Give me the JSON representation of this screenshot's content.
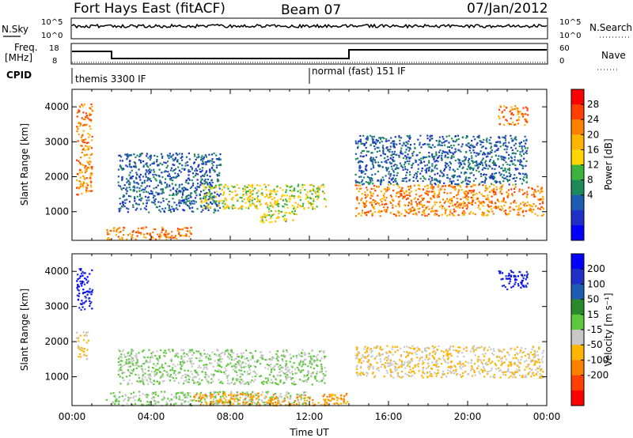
{
  "header": {
    "station": "Fort Hays East (fitACF)",
    "beam": "Beam 07",
    "date": "07/Jan/2012"
  },
  "status_panels": {
    "nsky_label": "N.Sky",
    "nsky_ticks": [
      "10^5",
      "10^0"
    ],
    "nsearch_label": "N.Search",
    "nsearch_ticks": [
      "10^5",
      "10^0"
    ],
    "freq_label": "Freq.",
    "freq_unit": "[MHz]",
    "freq_ticks": [
      "18",
      "8"
    ],
    "nave_label": "Nave",
    "nave_ticks": [
      "60",
      "0"
    ],
    "cpid_label": "CPID",
    "cpid_modes": [
      {
        "name": "themis 3300 IF",
        "start_hour": 0
      },
      {
        "name": "normal (fast) 151 IF",
        "start_hour": 12
      }
    ]
  },
  "chart_data": [
    {
      "type": "heatmap",
      "name": "power",
      "ylabel": "Slant Range [km]",
      "ylim": [
        180,
        4500
      ],
      "yticks": [
        1000,
        2000,
        3000,
        4000
      ],
      "xlim": [
        0,
        24
      ],
      "colorbar": {
        "label": "Power [dB]",
        "ticks": [
          "28",
          "24",
          "20",
          "16",
          "12",
          "8",
          "4"
        ],
        "colors": [
          "#ff0000",
          "#ff4000",
          "#ff8000",
          "#ffb400",
          "#ffd600",
          "#3cb33c",
          "#1e8a5a",
          "#1e5cb3",
          "#1e30c8",
          "#0000ff"
        ]
      },
      "regions": [
        {
          "t0": 0.2,
          "t1": 1.0,
          "r0": 1500,
          "r1": 4100,
          "level": "high"
        },
        {
          "t0": 1.7,
          "t1": 6.0,
          "r0": 220,
          "r1": 580,
          "level": "high"
        },
        {
          "t0": 2.3,
          "t1": 7.5,
          "r0": 1000,
          "r1": 2700,
          "level": "low"
        },
        {
          "t0": 6.5,
          "t1": 12.8,
          "r0": 1100,
          "r1": 1800,
          "level": "mid"
        },
        {
          "t0": 9.5,
          "t1": 11.3,
          "r0": 700,
          "r1": 1050,
          "level": "mid"
        },
        {
          "t0": 14.3,
          "t1": 23.8,
          "r0": 900,
          "r1": 1800,
          "level": "high"
        },
        {
          "t0": 14.3,
          "t1": 23.0,
          "r0": 1800,
          "r1": 3200,
          "level": "low"
        },
        {
          "t0": 21.5,
          "t1": 23.0,
          "r0": 3500,
          "r1": 4050,
          "level": "high"
        }
      ]
    },
    {
      "type": "heatmap",
      "name": "velocity",
      "ylabel": "Slant Range [km]",
      "ylim": [
        180,
        4500
      ],
      "yticks": [
        1000,
        2000,
        3000,
        4000
      ],
      "xlim": [
        0,
        24
      ],
      "xlabel": "Time UT",
      "xticks": [
        "00:00",
        "04:00",
        "08:00",
        "12:00",
        "16:00",
        "20:00",
        "00:00"
      ],
      "colorbar": {
        "label": "Velocity [m s⁻¹]",
        "ticks": [
          "200",
          "100",
          "50",
          "15",
          "-15",
          "-50",
          "-100",
          "-200"
        ],
        "colors": [
          "#0000ff",
          "#1e30c8",
          "#1e5cb3",
          "#2a8a2a",
          "#5cc83c",
          "#c8c8c8",
          "#ffb400",
          "#ff8000",
          "#ff4000",
          "#ff0000"
        ]
      },
      "regions": [
        {
          "t0": 0.2,
          "t1": 1.0,
          "r0": 2900,
          "r1": 4100,
          "v": "pos"
        },
        {
          "t0": 0.2,
          "t1": 0.8,
          "r0": 1500,
          "r1": 2300,
          "v": "zero"
        },
        {
          "t0": 2.3,
          "t1": 12.8,
          "r0": 800,
          "r1": 1800,
          "v": "weakpos"
        },
        {
          "t0": 1.7,
          "t1": 12.0,
          "r0": 200,
          "r1": 600,
          "v": "weakpos"
        },
        {
          "t0": 6.0,
          "t1": 14.0,
          "r0": 200,
          "r1": 550,
          "v": "neg"
        },
        {
          "t0": 14.3,
          "t1": 23.8,
          "r0": 1000,
          "r1": 1900,
          "v": "zero"
        },
        {
          "t0": 21.5,
          "t1": 23.0,
          "r0": 3500,
          "r1": 4050,
          "v": "pos"
        }
      ]
    }
  ]
}
